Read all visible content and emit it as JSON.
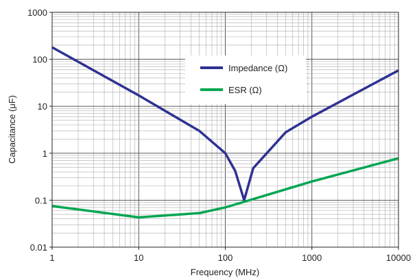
{
  "chart_data": {
    "type": "line",
    "title": "",
    "xlabel": "Frequency (MHz)",
    "ylabel": "Capacitance (μF)",
    "x_scale": "log",
    "y_scale": "log",
    "xlim": [
      1,
      10000
    ],
    "ylim": [
      0.01,
      1000
    ],
    "grid": true,
    "legend_position": "center",
    "x_ticks": [
      "1",
      "10",
      "100",
      "1000",
      "10000"
    ],
    "y_ticks": [
      "0.01",
      "0.1",
      "1",
      "10",
      "100",
      "1000"
    ],
    "series": [
      {
        "name": "Impedance (Ω)",
        "color": "#2e3192",
        "x": [
          1,
          10,
          50,
          100,
          130,
          165,
          210,
          500,
          1000,
          10000
        ],
        "y": [
          180,
          17,
          3,
          1,
          0.42,
          0.1,
          0.48,
          2.8,
          6,
          58
        ]
      },
      {
        "name": "ESR (Ω)",
        "color": "#00a651",
        "x": [
          1,
          10,
          50,
          100,
          1000,
          10000
        ],
        "y": [
          0.075,
          0.043,
          0.053,
          0.07,
          0.25,
          0.78
        ]
      }
    ]
  }
}
